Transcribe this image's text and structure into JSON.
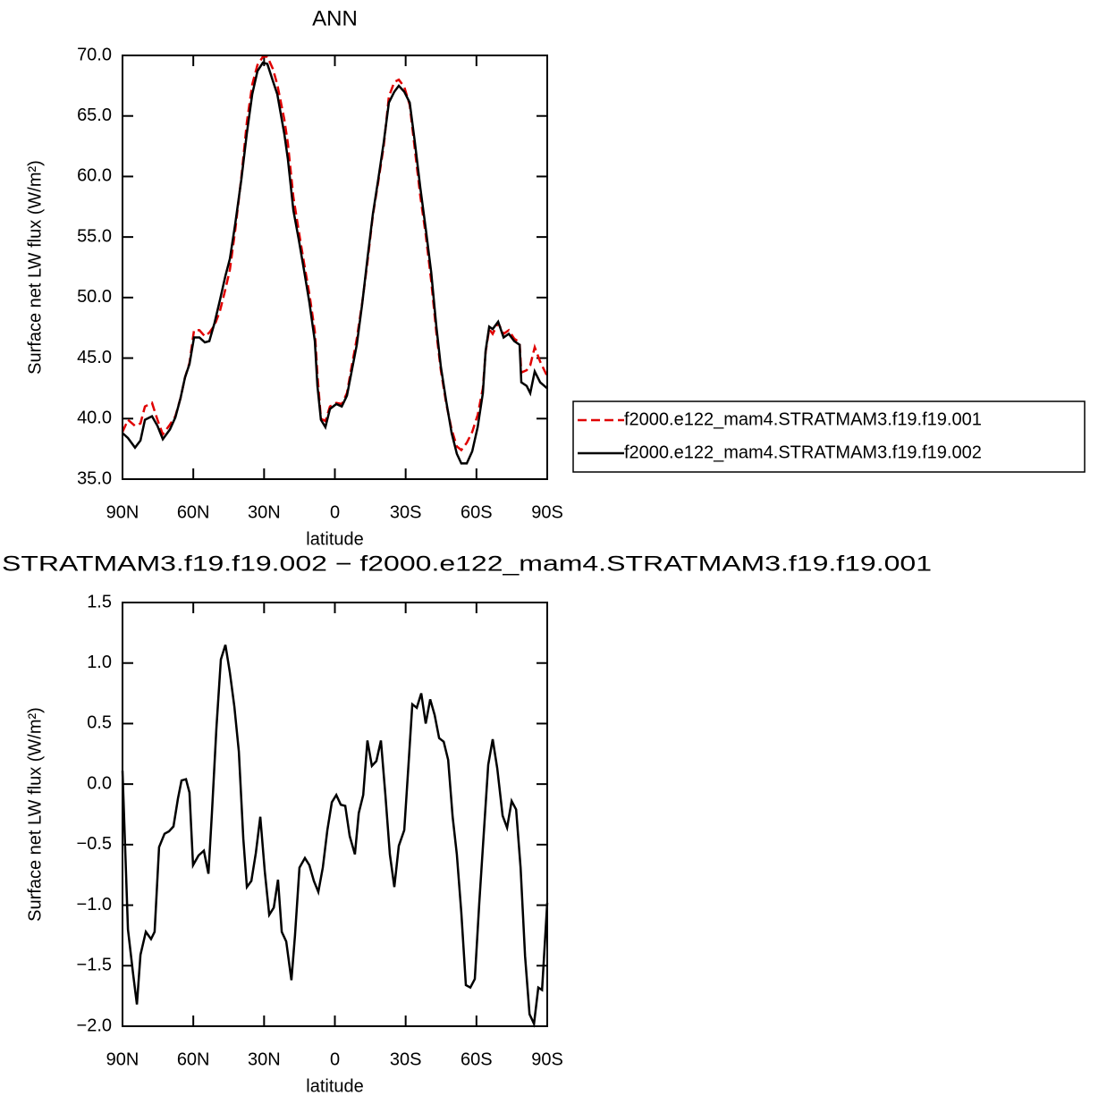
{
  "chart_data": [
    {
      "type": "line",
      "title": "ANN",
      "xlabel": "latitude",
      "ylabel": "Surface net LW flux (W/m²)",
      "xlim": [
        90,
        -90
      ],
      "xticks": [
        {
          "value": 90,
          "label": "90N"
        },
        {
          "value": 60,
          "label": "60N"
        },
        {
          "value": 30,
          "label": "30N"
        },
        0,
        {
          "value": -30,
          "label": "30S"
        },
        {
          "value": -60,
          "label": "60S"
        },
        {
          "value": -90,
          "label": "90S"
        }
      ],
      "ylim": [
        35,
        70
      ],
      "yticks": [
        {
          "value": 35,
          "label": "35.0"
        },
        {
          "value": 40,
          "label": "40.0"
        },
        {
          "value": 45,
          "label": "45.0"
        },
        {
          "value": 50,
          "label": "50.0"
        },
        {
          "value": 55,
          "label": "55.0"
        },
        {
          "value": 60,
          "label": "60.0"
        },
        {
          "value": 65,
          "label": "65.0"
        },
        {
          "value": 70,
          "label": "70.0"
        }
      ],
      "legend": "right",
      "x": [
        90,
        87.7,
        84.7,
        82.4,
        80.5,
        77.5,
        75.2,
        72.9,
        69.9,
        67.6,
        65.4,
        63.5,
        61.6,
        59.7,
        57.4,
        55.1,
        53.2,
        51.0,
        48.7,
        46.4,
        44.5,
        42.2,
        39.6,
        37.3,
        35.0,
        32.8,
        30.5,
        28.6,
        26.3,
        24.4,
        21.4,
        19.9,
        17.6,
        15.3,
        13.1,
        10.8,
        8.5,
        7.4,
        5.9,
        4.0,
        2.1,
        -0.6,
        -2.9,
        -5.1,
        -7.0,
        -9.3,
        -11.6,
        -13.8,
        -16.1,
        -18.4,
        -20.7,
        -22.9,
        -25.2,
        -27.1,
        -29.4,
        -31.7,
        -33.9,
        -36.2,
        -38.5,
        -40.8,
        -43.0,
        -44.9,
        -47.2,
        -49.5,
        -51.7,
        -53.6,
        -55.9,
        -58.2,
        -60.5,
        -62.7,
        -63.9,
        -65.4,
        -66.9,
        -69.2,
        -71.5,
        -73.7,
        -76.0,
        -78.3,
        -79.0,
        -81.3,
        -82.8,
        -84.7,
        -87.0,
        -90
      ],
      "series": [
        {
          "name": "f2000.e122_mam4.STRATMAM3.f19.f19.001",
          "color": "#e00000",
          "line_style": "dashed",
          "values": [
            38.9,
            39.9,
            39.4,
            39.6,
            41.0,
            41.3,
            39.9,
            38.7,
            39.5,
            40.2,
            41.7,
            43.4,
            44.6,
            47.3,
            47.3,
            46.8,
            47.1,
            47.7,
            48.9,
            50.7,
            52.3,
            55.6,
            60.0,
            64.5,
            67.6,
            69.2,
            69.9,
            69.9,
            68.9,
            67.6,
            64.7,
            62.7,
            58.3,
            55.5,
            52.9,
            50.3,
            47.2,
            43.6,
            40.0,
            39.8,
            41.0,
            41.3,
            41.2,
            42.1,
            44.2,
            46.6,
            49.6,
            52.9,
            56.8,
            59.6,
            62.5,
            66.6,
            67.8,
            68.0,
            67.4,
            65.9,
            62.2,
            58.4,
            55.2,
            51.4,
            47.1,
            44.0,
            41.2,
            39.1,
            37.7,
            37.4,
            38.0,
            38.9,
            40.3,
            42.5,
            45.5,
            47.4,
            47.0,
            47.9,
            47.0,
            47.3,
            46.6,
            46.3,
            43.8,
            44.0,
            44.4,
            45.9,
            44.7,
            43.5
          ]
        },
        {
          "name": "f2000.e122_mam4.STRATMAM3.f19.f19.002",
          "color": "#000000",
          "line_style": "solid",
          "values": [
            38.8,
            38.4,
            37.6,
            38.2,
            39.9,
            40.2,
            39.4,
            38.3,
            39.1,
            40.1,
            41.7,
            43.4,
            44.5,
            46.7,
            46.7,
            46.3,
            46.4,
            47.9,
            49.8,
            51.8,
            53.2,
            56.1,
            59.8,
            63.6,
            66.8,
            68.7,
            69.4,
            69.3,
            67.9,
            66.8,
            63.5,
            61.4,
            57.2,
            54.8,
            52.3,
            49.6,
            46.4,
            42.7,
            39.9,
            39.3,
            40.8,
            41.2,
            41.0,
            41.9,
            43.8,
            46.1,
            49.5,
            53.2,
            56.9,
            59.8,
            62.8,
            66.1,
            67.0,
            67.5,
            67.0,
            66.1,
            62.8,
            59.1,
            55.7,
            52.1,
            47.6,
            44.3,
            41.4,
            38.8,
            37.1,
            36.3,
            36.3,
            37.3,
            39.3,
            42.1,
            45.6,
            47.6,
            47.4,
            48.0,
            46.7,
            47.0,
            46.4,
            46.1,
            43.0,
            42.7,
            42.1,
            43.9,
            43.0,
            42.5
          ]
        }
      ]
    },
    {
      "type": "line",
      "title": "STRATMAM3.f19.f19.002 − f2000.e122_mam4.STRATMAM3.f19.f19.001",
      "xlabel": "latitude",
      "ylabel": "Surface net LW flux (W/m²)",
      "xlim": [
        90,
        -90
      ],
      "xticks": [
        {
          "value": 90,
          "label": "90N"
        },
        {
          "value": 60,
          "label": "60N"
        },
        {
          "value": 30,
          "label": "30N"
        },
        0,
        {
          "value": -30,
          "label": "30S"
        },
        {
          "value": -60,
          "label": "60S"
        },
        {
          "value": -90,
          "label": "90S"
        }
      ],
      "ylim": [
        -2,
        1.5
      ],
      "yticks": [
        {
          "value": -2,
          "label": "−2.0"
        },
        {
          "value": -1.5,
          "label": "−1.5"
        },
        {
          "value": -1,
          "label": "−1.0"
        },
        {
          "value": -0.5,
          "label": "−0.5"
        },
        {
          "value": 0,
          "label": "0.0"
        },
        0.5,
        {
          "value": 1,
          "label": "1.0"
        },
        1.5
      ],
      "x": [
        90,
        87.7,
        85.5,
        83.9,
        82.4,
        80.1,
        77.9,
        76.4,
        74.5,
        72.2,
        70.3,
        68.4,
        66.5,
        65.0,
        63.1,
        61.6,
        60.1,
        57.8,
        55.5,
        53.6,
        52.1,
        50.2,
        48.3,
        46.4,
        44.5,
        42.6,
        40.7,
        38.8,
        37.3,
        35.4,
        33.5,
        31.6,
        29.7,
        27.8,
        25.9,
        24.1,
        22.5,
        20.6,
        18.4,
        16.9,
        15.0,
        12.7,
        10.8,
        8.9,
        7.0,
        5.1,
        3.2,
        1.3,
        -0.6,
        -2.5,
        -4.4,
        -6.3,
        -8.5,
        -10.1,
        -12.0,
        -13.8,
        -15.7,
        -17.6,
        -19.5,
        -21.4,
        -23.3,
        -25.2,
        -27.1,
        -29.4,
        -31.3,
        -32.8,
        -34.7,
        -36.6,
        -38.5,
        -40.4,
        -42.3,
        -44.2,
        -46.1,
        -48.0,
        -49.9,
        -51.7,
        -53.6,
        -55.5,
        -57.4,
        -59.3,
        -61.2,
        -63.1,
        -65.0,
        -66.9,
        -68.8,
        -71.1,
        -73.0,
        -74.9,
        -76.8,
        -78.7,
        -80.6,
        -82.5,
        -84.4,
        -86.2,
        -87.8,
        -90
      ],
      "series": [
        {
          "color": "#000000",
          "line_style": "solid",
          "values": [
            0.11,
            -1.2,
            -1.57,
            -1.82,
            -1.41,
            -1.22,
            -1.28,
            -1.22,
            -0.52,
            -0.41,
            -0.39,
            -0.35,
            -0.12,
            0.03,
            0.04,
            -0.07,
            -0.67,
            -0.59,
            -0.55,
            -0.74,
            -0.24,
            0.46,
            1.03,
            1.15,
            0.92,
            0.64,
            0.27,
            -0.45,
            -0.85,
            -0.8,
            -0.57,
            -0.27,
            -0.72,
            -1.08,
            -1.02,
            -0.79,
            -1.22,
            -1.3,
            -1.62,
            -1.25,
            -0.69,
            -0.61,
            -0.67,
            -0.8,
            -0.89,
            -0.69,
            -0.38,
            -0.15,
            -0.09,
            -0.17,
            -0.18,
            -0.43,
            -0.58,
            -0.24,
            -0.09,
            0.36,
            0.15,
            0.19,
            0.36,
            -0.09,
            -0.58,
            -0.85,
            -0.51,
            -0.38,
            0.19,
            0.66,
            0.63,
            0.75,
            0.5,
            0.7,
            0.57,
            0.38,
            0.35,
            0.2,
            -0.27,
            -0.58,
            -1.06,
            -1.66,
            -1.68,
            -1.61,
            -0.98,
            -0.41,
            0.16,
            0.37,
            0.13,
            -0.26,
            -0.36,
            -0.14,
            -0.21,
            -0.69,
            -1.42,
            -1.9,
            -1.98,
            -1.68,
            -1.7,
            -0.98
          ]
        }
      ]
    }
  ]
}
